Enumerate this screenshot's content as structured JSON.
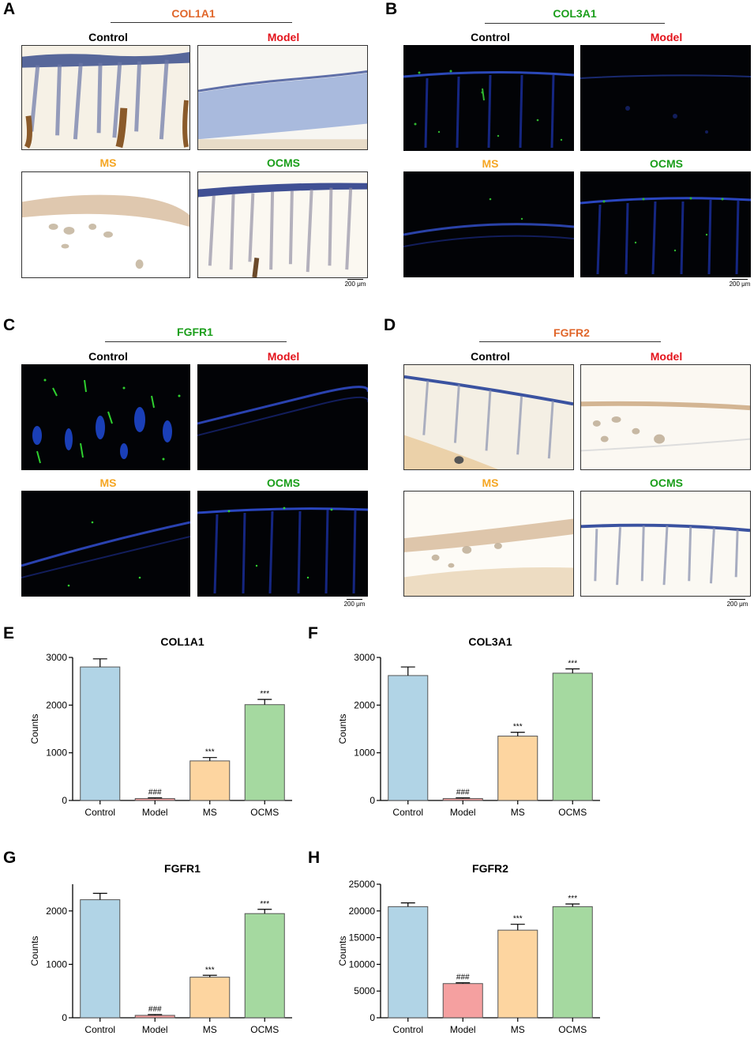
{
  "colors": {
    "orange_title": "#e0662a",
    "green_title": "#1a9e1a",
    "control_label": "#000000",
    "model_label": "#e3131b",
    "ms_label": "#f5a623",
    "ocms_label": "#1a9e1a",
    "bar_control": "#b1d4e6",
    "bar_model": "#f5a0a0",
    "bar_ms": "#fdd5a0",
    "bar_ocms": "#a5d9a0"
  },
  "panels": [
    {
      "letter": "A",
      "title": "COL1A1",
      "style": "ihc",
      "labels": [
        "Control",
        "Model",
        "MS",
        "OCMS"
      ],
      "scale": "200 μm"
    },
    {
      "letter": "B",
      "title": "COL3A1",
      "style": "fluo",
      "labels": [
        "Control",
        "Model",
        "MS",
        "OCMS"
      ],
      "scale": "200 μm"
    },
    {
      "letter": "C",
      "title": "FGFR1",
      "style": "fluo",
      "labels": [
        "Control",
        "Model",
        "MS",
        "OCMS"
      ],
      "scale": "200 μm"
    },
    {
      "letter": "D",
      "title": "FGFR2",
      "style": "ihc",
      "labels": [
        "Control",
        "Model",
        "MS",
        "OCMS"
      ],
      "scale": "200 μm"
    }
  ],
  "chart_data": [
    {
      "letter": "E",
      "type": "bar",
      "title": "COL1A1",
      "ylabel": "Counts",
      "categories": [
        "Control",
        "Model",
        "MS",
        "OCMS"
      ],
      "values": [
        2800,
        40,
        830,
        2010
      ],
      "errors": [
        170,
        15,
        70,
        110
      ],
      "annotations": [
        "",
        "###",
        "***",
        "***"
      ],
      "ylim": [
        0,
        3000
      ],
      "yticks": [
        0,
        1000,
        2000,
        3000
      ]
    },
    {
      "letter": "F",
      "type": "bar",
      "title": "COL3A1",
      "ylabel": "Counts",
      "categories": [
        "Control",
        "Model",
        "MS",
        "OCMS"
      ],
      "values": [
        2620,
        40,
        1350,
        2670
      ],
      "errors": [
        180,
        15,
        80,
        90
      ],
      "annotations": [
        "",
        "###",
        "***",
        "***"
      ],
      "ylim": [
        0,
        3000
      ],
      "yticks": [
        0,
        1000,
        2000,
        3000
      ]
    },
    {
      "letter": "G",
      "type": "bar",
      "title": "FGFR1",
      "ylabel": "Counts",
      "categories": [
        "Control",
        "Model",
        "MS",
        "OCMS"
      ],
      "values": [
        2210,
        45,
        760,
        1950
      ],
      "errors": [
        120,
        15,
        35,
        80
      ],
      "annotations": [
        "",
        "###",
        "***",
        "***"
      ],
      "ylim": [
        0,
        2500
      ],
      "yticks": [
        0,
        1000,
        2000
      ]
    },
    {
      "letter": "H",
      "type": "bar",
      "title": "FGFR2",
      "ylabel": "Counts",
      "categories": [
        "Control",
        "Model",
        "MS",
        "OCMS"
      ],
      "values": [
        20800,
        6400,
        16400,
        20800
      ],
      "errors": [
        700,
        150,
        1100,
        500
      ],
      "annotations": [
        "",
        "###",
        "***",
        "***"
      ],
      "ylim": [
        0,
        25000
      ],
      "yticks": [
        0,
        5000,
        10000,
        15000,
        20000,
        25000
      ]
    }
  ]
}
